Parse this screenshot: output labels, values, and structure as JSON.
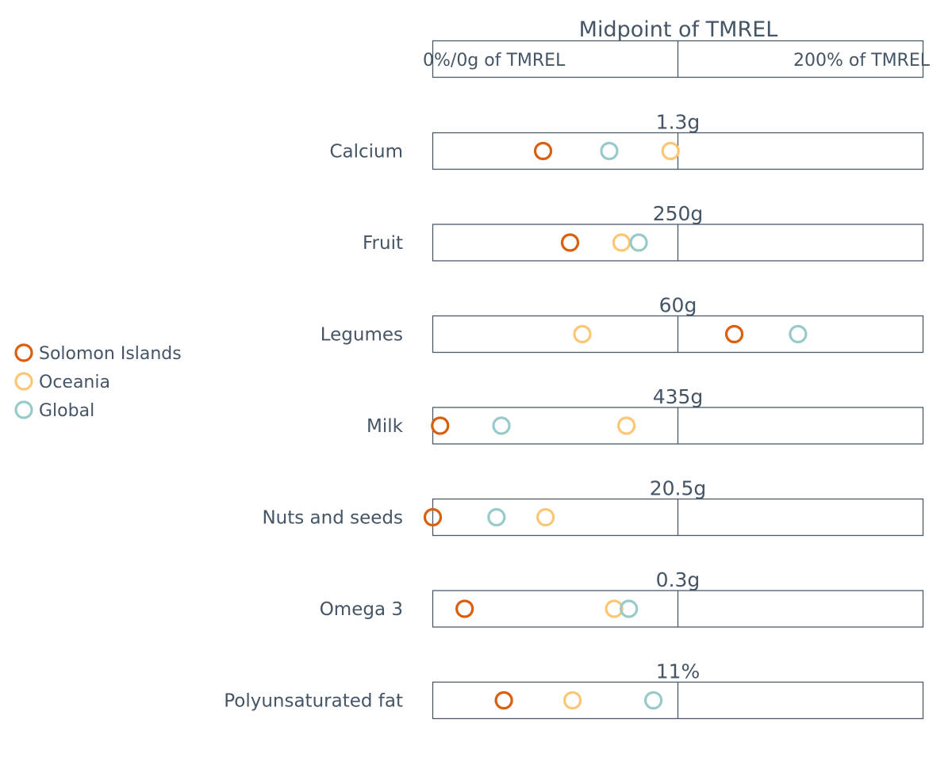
{
  "chart_data": {
    "type": "scatter",
    "header": {
      "title": "Midpoint of TMREL",
      "left_label": "0%/0g of TMREL",
      "right_label": "200% of TMREL"
    },
    "x_scale": {
      "unit": "percent of TMREL",
      "range": [
        0,
        200
      ],
      "midpoint": 100
    },
    "legend": {
      "position": "left",
      "entries": [
        {
          "name": "Solomon Islands",
          "color": "#d95f0e"
        },
        {
          "name": "Oceania",
          "color": "#fdc675"
        },
        {
          "name": "Global",
          "color": "#97cac9"
        }
      ]
    },
    "categories": [
      {
        "label": "Calcium",
        "tmrel": "1.3g",
        "values": {
          "Solomon Islands": 45,
          "Oceania": 97,
          "Global": 72
        }
      },
      {
        "label": "Fruit",
        "tmrel": "250g",
        "values": {
          "Solomon Islands": 56,
          "Oceania": 77,
          "Global": 84
        }
      },
      {
        "label": "Legumes",
        "tmrel": "60g",
        "values": {
          "Solomon Islands": 123,
          "Oceania": 61,
          "Global": 149
        }
      },
      {
        "label": "Milk",
        "tmrel": "435g",
        "values": {
          "Solomon Islands": 3,
          "Oceania": 79,
          "Global": 28
        }
      },
      {
        "label": "Nuts and seeds",
        "tmrel": "20.5g",
        "values": {
          "Solomon Islands": 0,
          "Oceania": 46,
          "Global": 26
        }
      },
      {
        "label": "Omega 3",
        "tmrel": "0.3g",
        "values": {
          "Solomon Islands": 13,
          "Oceania": 74,
          "Global": 80
        }
      },
      {
        "label": "Polyunsaturated fat",
        "tmrel": "11%",
        "values": {
          "Solomon Islands": 29,
          "Oceania": 57,
          "Global": 90
        }
      }
    ]
  }
}
